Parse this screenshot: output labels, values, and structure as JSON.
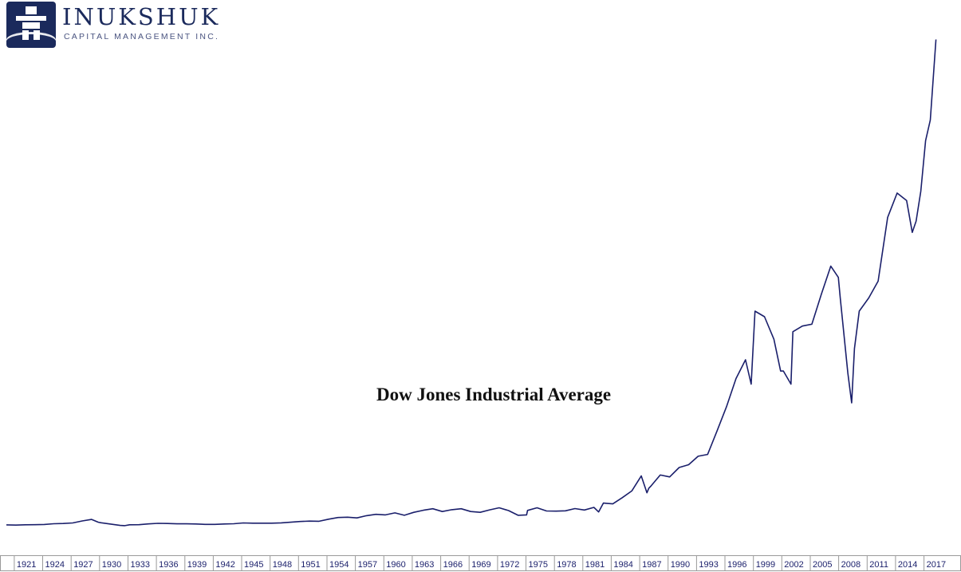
{
  "logo": {
    "name": "INUKSHUK",
    "subtitle": "CAPITAL MANAGEMENT INC.",
    "icon": "inukshuk-icon",
    "color": "#1b2a5c"
  },
  "chart_data": {
    "type": "line",
    "title": "Dow Jones Industrial Average",
    "xlabel": "",
    "ylabel": "",
    "xlim": [
      1920,
      2018.3
    ],
    "ylim": [
      0,
      27000
    ],
    "grid": false,
    "legend": "none",
    "line_color": "#1a1f6b",
    "x_ticks": [
      "1921",
      "1924",
      "1927",
      "1930",
      "1933",
      "1936",
      "1939",
      "1942",
      "1945",
      "1948",
      "1951",
      "1954",
      "1957",
      "1960",
      "1963",
      "1966",
      "1969",
      "1972",
      "1975",
      "1978",
      "1981",
      "1984",
      "1987",
      "1990",
      "1993",
      "1996",
      "1999",
      "2002",
      "2005",
      "2008",
      "2011",
      "2014",
      "2017"
    ],
    "series": [
      {
        "x": [
          1920,
          1921,
          1922,
          1923,
          1924,
          1925,
          1926,
          1927,
          1928,
          1929,
          1929.7,
          1930,
          1931,
          1932,
          1932.5,
          1933,
          1934,
          1935,
          1936,
          1937,
          1938,
          1939,
          1940,
          1941,
          1942,
          1943,
          1944,
          1945,
          1946,
          1947,
          1948,
          1949,
          1950,
          1951,
          1952,
          1953,
          1954,
          1955,
          1956,
          1957,
          1958,
          1959,
          1960,
          1961,
          1962,
          1963,
          1964,
          1965,
          1966,
          1967,
          1968,
          1969,
          1970,
          1971,
          1972,
          1973,
          1974,
          1974.9,
          1975,
          1976,
          1977,
          1978,
          1979,
          1980,
          1981,
          1982,
          1982.5,
          1983,
          1984,
          1985,
          1986,
          1987,
          1987.6,
          1987.8,
          1988,
          1989,
          1990,
          1991,
          1992,
          1993,
          1994,
          1995,
          1996,
          1997,
          1998,
          1998.6,
          1999,
          2000,
          2001,
          2001.7,
          2002,
          2002.8,
          2003,
          2004,
          2005,
          2006,
          2007,
          2007.8,
          2008,
          2008.8,
          2009.2,
          2009.5,
          2010,
          2011,
          2012,
          2013,
          2014,
          2015,
          2015.6,
          2016,
          2016.5,
          2017,
          2017.5,
          2018.1
        ],
        "values": [
          90,
          75,
          95,
          100,
          110,
          150,
          160,
          190,
          300,
          380,
          230,
          200,
          130,
          60,
          45,
          95,
          100,
          140,
          170,
          160,
          145,
          145,
          135,
          115,
          115,
          135,
          150,
          190,
          180,
          180,
          180,
          195,
          230,
          270,
          290,
          280,
          390,
          480,
          500,
          460,
          580,
          650,
          620,
          730,
          600,
          760,
          870,
          950,
          800,
          900,
          950,
          800,
          760,
          890,
          1000,
          850,
          600,
          620,
          860,
          1000,
          830,
          820,
          840,
          960,
          880,
          1020,
          780,
          1250,
          1210,
          1540,
          1900,
          2700,
          1800,
          2050,
          2150,
          2750,
          2650,
          3150,
          3300,
          3750,
          3850,
          5100,
          6400,
          7900,
          8900,
          7600,
          11500,
          11200,
          10000,
          8300,
          8300,
          7600,
          10400,
          10700,
          10800,
          12400,
          13900,
          13300,
          12200,
          8200,
          6600,
          9500,
          11500,
          12200,
          13100,
          16500,
          17800,
          17400,
          15700,
          16300,
          17900,
          20600,
          21700,
          26000
        ]
      }
    ]
  }
}
